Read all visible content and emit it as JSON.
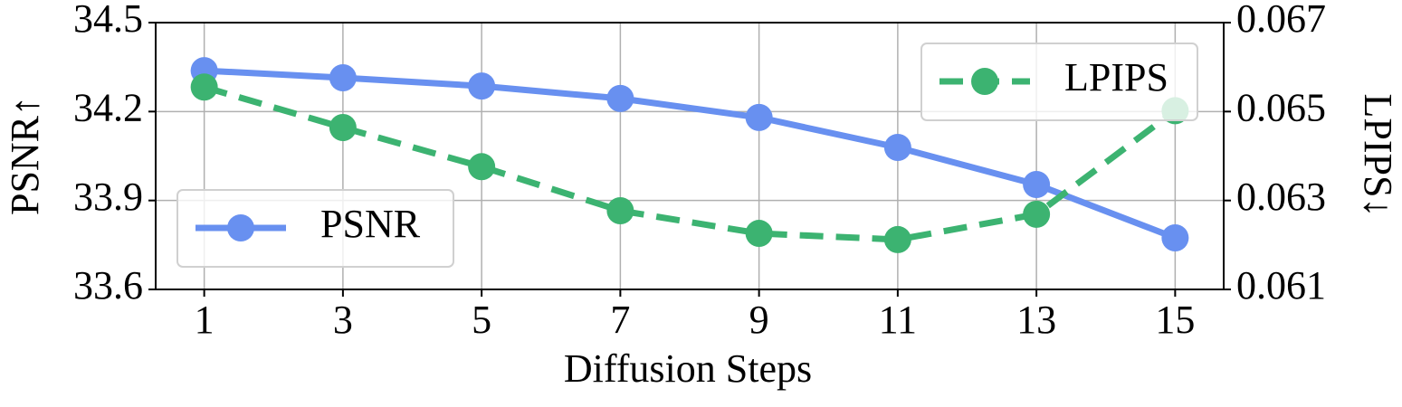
{
  "chart_data": {
    "type": "line",
    "x_label": "Diffusion Steps",
    "y_label": "PSNR↑",
    "y2_label": "LPIPS↓",
    "x": [
      1,
      3,
      5,
      7,
      9,
      11,
      13,
      15
    ],
    "xlim": [
      0.3,
      15.7
    ],
    "xticks": [
      1,
      3,
      5,
      7,
      9,
      11,
      13,
      15
    ],
    "ylim": [
      33.6,
      34.5
    ],
    "yticks": [
      33.6,
      33.9,
      34.2,
      34.5
    ],
    "y2lim": [
      0.061,
      0.067
    ],
    "y2ticks": [
      0.061,
      0.063,
      0.065,
      0.067
    ],
    "grid": true,
    "series": [
      {
        "name": "PSNR",
        "color": "#6890f0",
        "style": "solid",
        "legend_loc": "lower left",
        "values": [
          34.338,
          34.314,
          34.286,
          34.244,
          34.18,
          34.079,
          33.954,
          33.774
        ]
      },
      {
        "name": "LPIPS",
        "color": "#3cb371",
        "style": "dashed",
        "axis": "y2",
        "legend_loc": "upper right",
        "values": [
          0.06555,
          0.06464,
          0.06376,
          0.06277,
          0.06226,
          0.06212,
          0.06269,
          0.06502
        ]
      }
    ]
  }
}
